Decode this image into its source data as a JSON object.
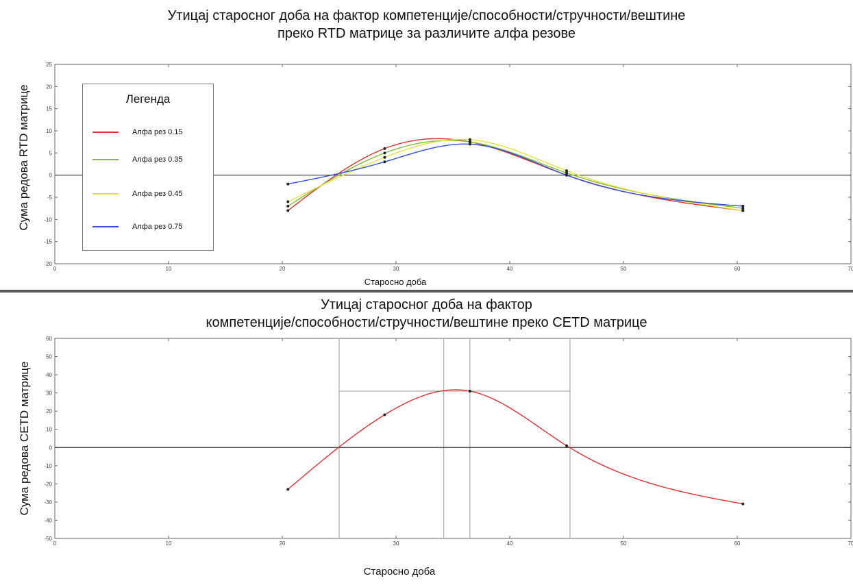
{
  "chart_data": [
    {
      "type": "line",
      "title": "Утицај старосног доба на фактор компетенције/способности/стручности/вештине преко RTD матрице за различите алфа резове",
      "title_lines": [
        "Утицај старосног доба на фактор компетенције/способности/стручности/вештине",
        "преко RTD матрице за различите алфа резове"
      ],
      "xlabel": "Старосно доба",
      "ylabel": "Сума редова RTD матрице",
      "xlim": [
        0,
        70
      ],
      "ylim": [
        -20,
        25
      ],
      "xticks": [
        0,
        10,
        20,
        30,
        40,
        50,
        60,
        70
      ],
      "yticks": [
        25,
        20,
        15,
        10,
        5,
        0,
        -5,
        -10,
        -15,
        -20
      ],
      "x": [
        20.5,
        29,
        36.5,
        45,
        60.5
      ],
      "series": [
        {
          "name": "Алфа рез 0.15",
          "values": [
            -8,
            6,
            7.5,
            0,
            -8
          ],
          "color": "#e03030"
        },
        {
          "name": "Алфа рез 0.35",
          "values": [
            -7,
            5,
            7.5,
            0.5,
            -7.5
          ],
          "color": "#80c030"
        },
        {
          "name": "Алфа рез 0.45",
          "values": [
            -6,
            4,
            8,
            1,
            -8
          ],
          "color": "#e8e040"
        },
        {
          "name": "Алфа рез 0.75",
          "values": [
            -2,
            3,
            7,
            0,
            -7
          ],
          "color": "#3050e0"
        }
      ],
      "legend": {
        "title": "Легенда",
        "placement": "top-left"
      },
      "zero_line": true,
      "grid": false
    },
    {
      "type": "line",
      "title": "Утицај старосног доба на фактор компетенције/способности/стручности/вештине преко CETD матрице",
      "title_lines": [
        "Утицај старосног доба на фактор",
        "компетенције/способности/стручности/вештине преко CETD матрице"
      ],
      "xlabel": "Старосно доба",
      "ylabel": "Сума редова CETD матрице",
      "xlim": [
        0,
        70
      ],
      "ylim": [
        -50,
        60
      ],
      "xticks": [
        0,
        10,
        20,
        30,
        40,
        50,
        60,
        70
      ],
      "yticks": [
        60,
        50,
        40,
        30,
        20,
        10,
        0,
        -10,
        -20,
        -30,
        -40,
        -50
      ],
      "x": [
        20.5,
        29,
        36.5,
        45,
        60.5
      ],
      "series": [
        {
          "values": [
            -23,
            18,
            31,
            1,
            -31
          ],
          "color": "#e03030"
        }
      ],
      "reference_lines": {
        "vertical": [
          25,
          34.2,
          36.5,
          45.3
        ],
        "horizontal": [
          31
        ]
      },
      "zero_line": true,
      "grid": false
    }
  ]
}
